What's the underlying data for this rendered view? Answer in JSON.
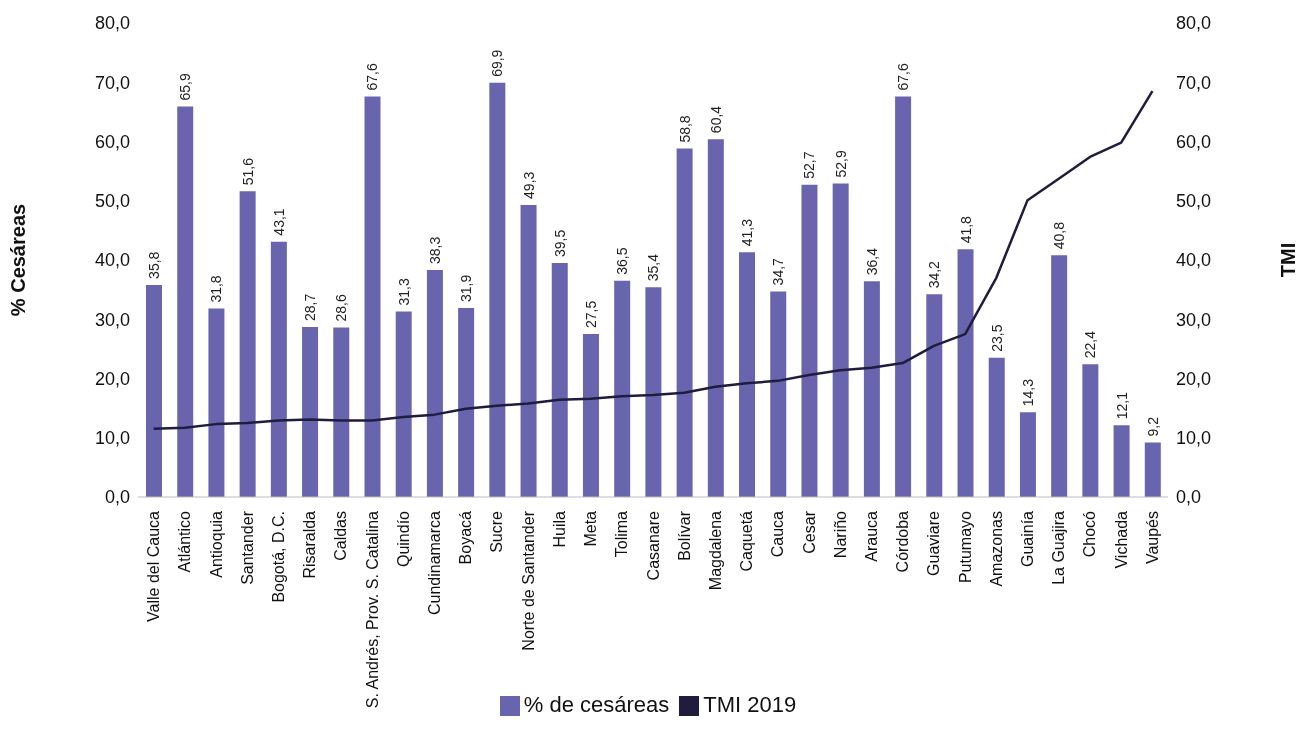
{
  "chart_data": {
    "type": "bar",
    "ylabel": "% Cesáreas",
    "y2label": "TMI",
    "categories": [
      "Valle del Cauca",
      "Atlántico",
      "Antioquia",
      "Santander",
      "Bogotá, D.C.",
      "Risaralda",
      "Caldas",
      "S. Andrés, Prov. S. Catalina",
      "Quindío",
      "Cundinamarca",
      "Boyacá",
      "Sucre",
      "Norte de Santander",
      "Huila",
      "Meta",
      "Tolima",
      "Casanare",
      "Bolívar",
      "Magdalena",
      "Caquetá",
      "Cauca",
      "Cesar",
      "Nariño",
      "Arauca",
      "Córdoba",
      "Guaviare",
      "Putumayo",
      "Amazonas",
      "Guainía",
      "La Guajira",
      "Chocó",
      "Vichada",
      "Vaupés"
    ],
    "series": [
      {
        "name": "% de cesáreas",
        "color": "#6865ae",
        "values": [
          35.8,
          65.9,
          31.8,
          51.6,
          43.1,
          28.7,
          28.6,
          67.6,
          31.3,
          38.3,
          31.9,
          69.9,
          49.3,
          39.5,
          27.5,
          36.5,
          35.4,
          58.8,
          60.4,
          41.3,
          34.7,
          52.7,
          52.9,
          36.4,
          67.6,
          34.2,
          41.8,
          23.5,
          14.3,
          40.8,
          22.4,
          12.1,
          9.2
        ],
        "value_labels": [
          "35,8",
          "65,9",
          "31,8",
          "51,6",
          "43,1",
          "28,7",
          "28,6",
          "67,6",
          "31,3",
          "38,3",
          "31,9",
          "69,9",
          "49,3",
          "39,5",
          "27,5",
          "36,5",
          "35,4",
          "58,8",
          "60,4",
          "41,3",
          "34,7",
          "52,7",
          "52,9",
          "36,4",
          "67,6",
          "34,2",
          "41,8",
          "23,5",
          "14,3",
          "40,8",
          "22,4",
          "12,1",
          "9,2"
        ]
      },
      {
        "name": "TMI 2019",
        "type": "line",
        "axis": "y2",
        "color": "#1f1c3d",
        "values": [
          11.5,
          11.7,
          12.3,
          12.5,
          12.9,
          13.1,
          12.9,
          12.9,
          13.5,
          13.9,
          14.9,
          15.4,
          15.8,
          16.4,
          16.6,
          17.0,
          17.2,
          17.6,
          18.6,
          19.2,
          19.6,
          20.6,
          21.4,
          21.8,
          22.6,
          25.5,
          27.5,
          37.0,
          50.1,
          53.7,
          57.4,
          59.8,
          68.5
        ]
      }
    ],
    "ylim": [
      0,
      80
    ],
    "yticks": [
      {
        "value": 0,
        "label": "0,0"
      },
      {
        "value": 10,
        "label": "10,0"
      },
      {
        "value": 20,
        "label": "20,0"
      },
      {
        "value": 30,
        "label": "30,0"
      },
      {
        "value": 40,
        "label": "40,0"
      },
      {
        "value": 50,
        "label": "50,0"
      },
      {
        "value": 60,
        "label": "60,0"
      },
      {
        "value": 70,
        "label": "70,0"
      },
      {
        "value": 80,
        "label": "80,0"
      }
    ],
    "y2lim": [
      0,
      80
    ],
    "y2ticks": [
      {
        "value": 0,
        "label": "0,0"
      },
      {
        "value": 10,
        "label": "10,0"
      },
      {
        "value": 20,
        "label": "20,0"
      },
      {
        "value": 30,
        "label": "30,0"
      },
      {
        "value": 40,
        "label": "40,0"
      },
      {
        "value": 50,
        "label": "50,0"
      },
      {
        "value": 60,
        "label": "60,0"
      },
      {
        "value": 70,
        "label": "70,0"
      },
      {
        "value": 80,
        "label": "80,0"
      }
    ],
    "grid": false,
    "legend": "bottom",
    "marker": "none",
    "line_style": "solid"
  }
}
